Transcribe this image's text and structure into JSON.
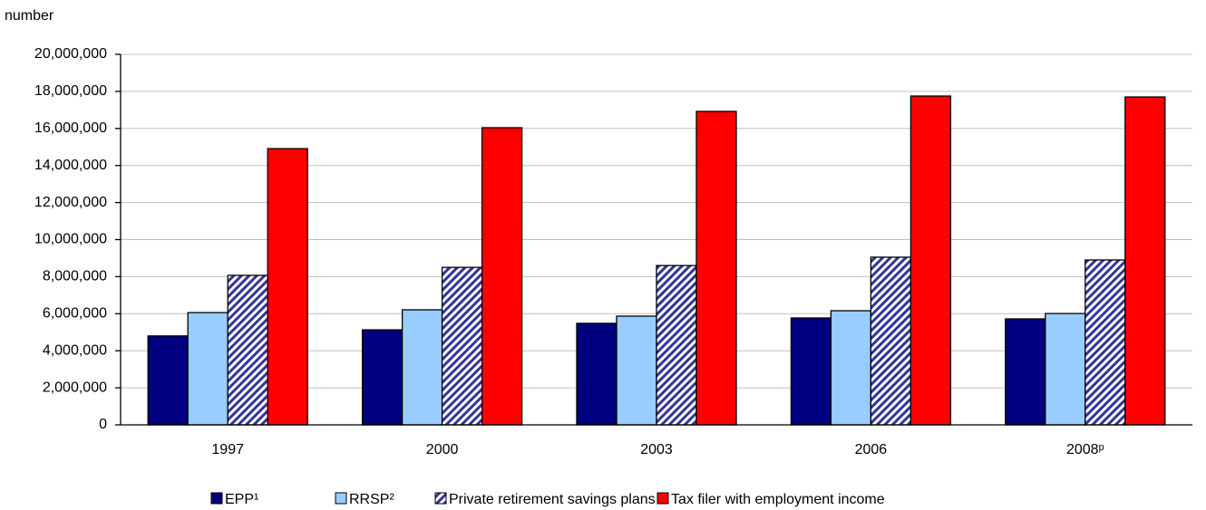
{
  "chart_data": {
    "type": "bar",
    "y_label": "number",
    "categories": [
      "1997",
      "2000",
      "2003",
      "2006",
      "2008ᵖ"
    ],
    "series": [
      {
        "name": "EPP¹",
        "color": "#000080",
        "values": [
          4800000,
          5130000,
          5480000,
          5770000,
          5720000
        ]
      },
      {
        "name": "RRSP²",
        "color": "#99ccff",
        "values": [
          6060000,
          6210000,
          5870000,
          6160000,
          6010000
        ]
      },
      {
        "name": "Private retirement savings plans",
        "color": "#333399",
        "hatch": true,
        "values": [
          8070000,
          8500000,
          8600000,
          9050000,
          8900000
        ]
      },
      {
        "name": "Tax filer with employment income",
        "color": "#ff0000",
        "values": [
          14910000,
          16040000,
          16920000,
          17750000,
          17700000
        ]
      }
    ],
    "ylim": [
      0,
      20000000
    ],
    "yticks": [
      0,
      {
        "value": 2000000,
        "label": "2,000,000"
      },
      {
        "value": 4000000,
        "label": "4,000,000"
      },
      {
        "value": 6000000,
        "label": "6,000,000"
      },
      {
        "value": 8000000,
        "label": "8,000,000"
      },
      {
        "value": 10000000,
        "label": "10,000,000"
      },
      {
        "value": 12000000,
        "label": "12,000,000"
      },
      {
        "value": 14000000,
        "label": "14,000,000"
      },
      {
        "value": 16000000,
        "label": "16,000,000"
      },
      {
        "value": 18000000,
        "label": "18,000,000"
      },
      {
        "value": 20000000,
        "label": "20,000,000"
      }
    ],
    "grid": true,
    "legend": "bottom"
  }
}
